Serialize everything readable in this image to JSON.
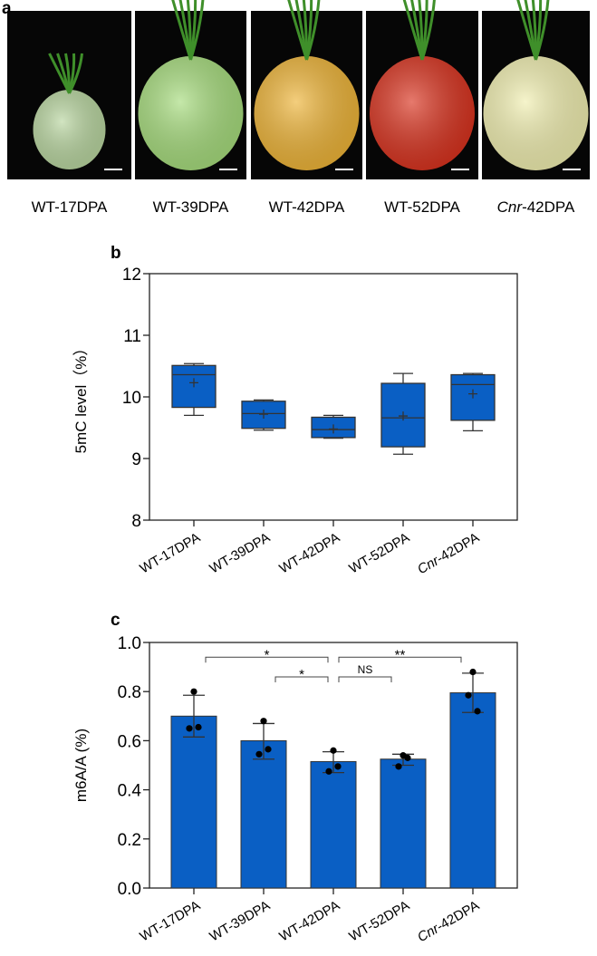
{
  "panel_a": {
    "letter": "a",
    "photos": [
      {
        "label": "WT-17DPA",
        "color": "#b9d6a0"
      },
      {
        "label": "WT-39DPA",
        "color": "#a6dc7c"
      },
      {
        "label": "WT-42DPA",
        "color": "#eeb437"
      },
      {
        "label": "WT-52DPA",
        "color": "#d9321e"
      },
      {
        "label_italic": "Cnr",
        "label": "-42DPA",
        "color": "#f1efb0"
      }
    ]
  },
  "chart_data": [
    {
      "panel": "b",
      "type": "box",
      "ylabel": "5mC level（%）",
      "ylim": [
        8,
        12
      ],
      "yticks": [
        "8",
        "9",
        "10",
        "11",
        "12"
      ],
      "categories": [
        "WT-17DPA",
        "WT-39DPA",
        "WT-42DPA",
        "WT-52DPA",
        "Cnr-42DPA"
      ],
      "boxes": [
        {
          "min": 9.7,
          "q1": 9.83,
          "median": 10.36,
          "q3": 10.51,
          "max": 10.54,
          "mean": 10.23
        },
        {
          "min": 9.46,
          "q1": 9.49,
          "median": 9.73,
          "q3": 9.93,
          "max": 9.95,
          "mean": 9.72
        },
        {
          "min": 9.33,
          "q1": 9.34,
          "median": 9.47,
          "q3": 9.67,
          "max": 9.7,
          "mean": 9.48
        },
        {
          "min": 9.07,
          "q1": 9.19,
          "median": 9.66,
          "q3": 10.22,
          "max": 10.38,
          "mean": 9.69
        },
        {
          "min": 9.45,
          "q1": 9.62,
          "median": 10.2,
          "q3": 10.36,
          "max": 10.38,
          "mean": 10.05
        }
      ],
      "color": "#0a5fc4"
    },
    {
      "panel": "c",
      "type": "bar",
      "ylabel": "m6A/A (%)",
      "ylim": [
        0,
        1.0
      ],
      "yticks": [
        "0.0",
        "0.2",
        "0.4",
        "0.6",
        "0.8",
        "1.0"
      ],
      "categories": [
        "WT-17DPA",
        "WT-39DPA",
        "WT-42DPA",
        "WT-52DPA",
        "Cnr-42DPA"
      ],
      "values": [
        0.7,
        0.6,
        0.515,
        0.525,
        0.795
      ],
      "error_low": [
        0.615,
        0.525,
        0.47,
        0.5,
        0.715
      ],
      "error_high": [
        0.785,
        0.67,
        0.555,
        0.545,
        0.875
      ],
      "points": [
        [
          0.8,
          0.65,
          0.655
        ],
        [
          0.68,
          0.545,
          0.565
        ],
        [
          0.56,
          0.475,
          0.495
        ],
        [
          0.54,
          0.495,
          0.53
        ],
        [
          0.88,
          0.785,
          0.72
        ]
      ],
      "significance": [
        {
          "from": 0,
          "to": 2,
          "label": "*",
          "level": 0.94
        },
        {
          "from": 1,
          "to": 2,
          "label": "*",
          "level": 0.86
        },
        {
          "from": 2,
          "to": 3,
          "label": "NS",
          "level": 0.86
        },
        {
          "from": 2,
          "to": 4,
          "label": "**",
          "level": 0.94
        }
      ],
      "color": "#0a5fc4"
    }
  ]
}
